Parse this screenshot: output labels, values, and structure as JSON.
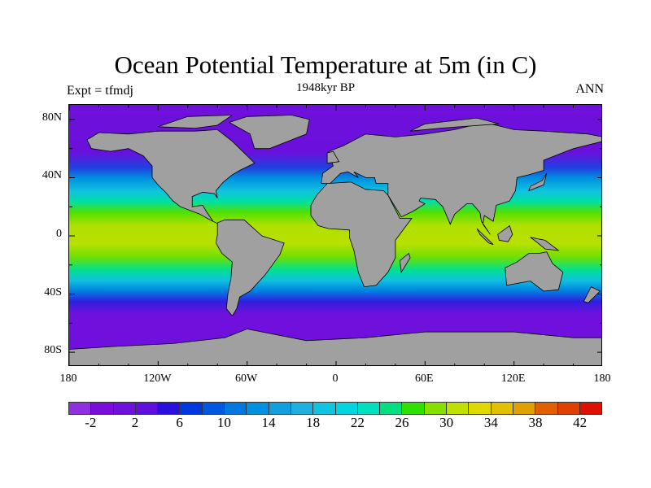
{
  "title": "Ocean Potential Temperature at 5m (in C)",
  "subtitle": "1948kyr BP",
  "left_label": "Expt = tfmdj",
  "right_label": "ANN",
  "y_ticks": [
    "80N",
    "40N",
    "0",
    "40S",
    "80S"
  ],
  "y_tick_values": [
    80,
    40,
    0,
    -40,
    -80
  ],
  "x_ticks": [
    "180",
    "120W",
    "60W",
    "0",
    "60E",
    "120E",
    "180"
  ],
  "x_tick_values": [
    -180,
    -120,
    -60,
    0,
    60,
    120,
    180
  ],
  "colorbar": {
    "levels": [
      -2,
      0,
      2,
      4,
      6,
      8,
      10,
      12,
      14,
      16,
      18,
      20,
      22,
      24,
      26,
      28,
      30,
      32,
      34,
      36,
      38,
      40,
      42
    ],
    "labels": [
      "-2",
      "2",
      "6",
      "10",
      "14",
      "18",
      "22",
      "26",
      "30",
      "34",
      "38",
      "42"
    ],
    "label_values": [
      -2,
      2,
      6,
      10,
      14,
      18,
      22,
      26,
      30,
      34,
      38,
      42
    ],
    "colors": [
      "#8f30e0",
      "#7a0ddc",
      "#7010dc",
      "#6010dc",
      "#2a10e0",
      "#0038e0",
      "#0058e0",
      "#0078e0",
      "#0090e0",
      "#10a0e0",
      "#20b0e0",
      "#10c4e0",
      "#00d4e0",
      "#00e0c0",
      "#00e080",
      "#30e000",
      "#88e000",
      "#c0e000",
      "#e0d800",
      "#e0c000",
      "#e0a000",
      "#e06000",
      "#e04000",
      "#e01000"
    ]
  },
  "land_color": "#a0a0a0"
}
